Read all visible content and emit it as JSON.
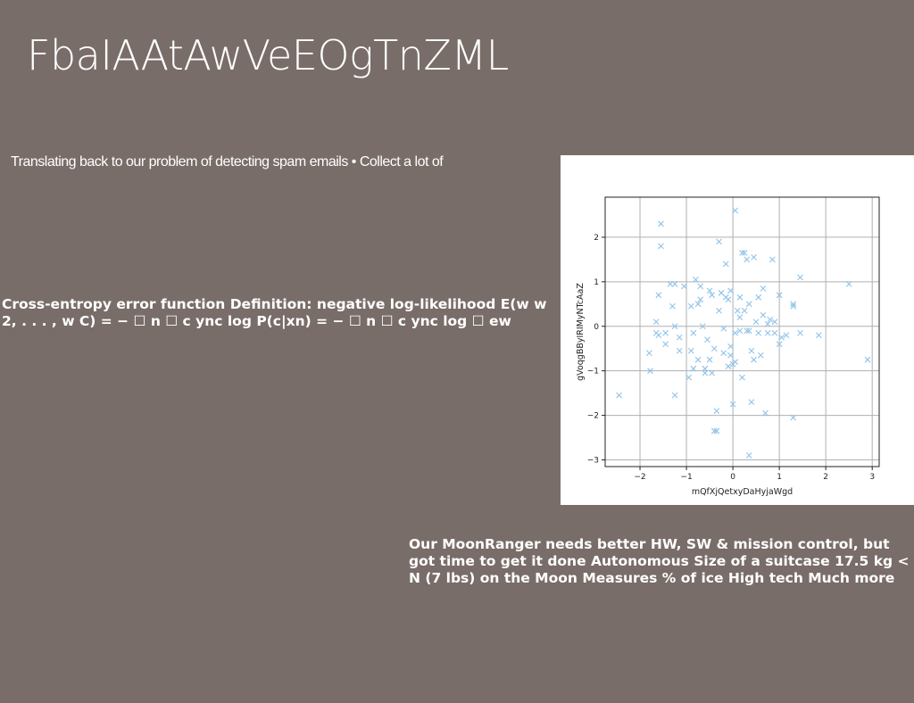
{
  "slide": {
    "title": "FbaIAAtAwVeEOgTnZML",
    "intro": "Translating back to our problem of detecting spam emails • Collect a lot of",
    "block_left": "Cross-entropy error function Definition: negative log-likelihood E(w w 2, . . . , w C) = − ☐ n ☐ c ync log P(c|xn) = − ☐ n ☐ c ync log ☐ ew",
    "block_right": "Our MoonRanger needs better HW, SW & mission control, but got time to get it done Autonomous Size of a suitcase 17.5 kg < N (7 lbs) on the Moon Measures % of ice High tech Much more"
  },
  "chart_data": {
    "type": "scatter",
    "xlabel": "mQfXjQetxyDaHyjaWgd",
    "ylabel": "gVoqgBByIRIMyNTcAaZ",
    "xlim": [
      -2.75,
      3.15
    ],
    "ylim": [
      -3.15,
      2.9
    ],
    "xticks": [
      -2,
      -1,
      0,
      1,
      2,
      3
    ],
    "yticks": [
      2,
      1,
      0,
      -1,
      -2,
      -3
    ],
    "xtick_labels": [
      "−2",
      "−1",
      "0",
      "1",
      "2",
      "3"
    ],
    "ytick_labels": [
      "2",
      "1",
      "0",
      "−1",
      "−2",
      "−3"
    ],
    "grid": true,
    "marker": "x",
    "color": "#8ec3ea",
    "points": [
      [
        -2.45,
        -1.55
      ],
      [
        -1.8,
        -0.6
      ],
      [
        -1.78,
        -1.0
      ],
      [
        -1.65,
        0.1
      ],
      [
        -1.65,
        -0.15
      ],
      [
        -1.6,
        0.7
      ],
      [
        -1.55,
        2.3
      ],
      [
        -1.55,
        1.8
      ],
      [
        -1.45,
        -0.15
      ],
      [
        -1.45,
        -0.4
      ],
      [
        -1.35,
        0.95
      ],
      [
        -1.3,
        0.45
      ],
      [
        -1.25,
        0.95
      ],
      [
        -1.25,
        -1.55
      ],
      [
        -1.15,
        -0.25
      ],
      [
        -1.15,
        -0.55
      ],
      [
        -1.05,
        0.9
      ],
      [
        -0.9,
        -0.55
      ],
      [
        -0.85,
        -0.15
      ],
      [
        -0.85,
        -0.95
      ],
      [
        -0.8,
        1.05
      ],
      [
        -0.75,
        0.5
      ],
      [
        -0.75,
        -0.75
      ],
      [
        -0.7,
        0.6
      ],
      [
        -0.65,
        0.0
      ],
      [
        -0.6,
        -1.05
      ],
      [
        -0.55,
        -0.3
      ],
      [
        -0.5,
        -0.75
      ],
      [
        -0.5,
        0.8
      ],
      [
        -0.45,
        0.7
      ],
      [
        -0.4,
        -0.5
      ],
      [
        -0.35,
        -1.9
      ],
      [
        -0.3,
        1.9
      ],
      [
        -0.3,
        0.35
      ],
      [
        -0.25,
        0.75
      ],
      [
        -0.2,
        -0.6
      ],
      [
        -0.15,
        1.4
      ],
      [
        -0.15,
        0.65
      ],
      [
        -0.1,
        -0.9
      ],
      [
        -0.05,
        -0.45
      ],
      [
        -0.05,
        -0.65
      ],
      [
        0.0,
        -0.85
      ],
      [
        0.0,
        -1.75
      ],
      [
        0.05,
        2.6
      ],
      [
        0.05,
        -0.8
      ],
      [
        0.05,
        -0.15
      ],
      [
        0.1,
        0.35
      ],
      [
        0.15,
        0.65
      ],
      [
        0.15,
        0.2
      ],
      [
        0.15,
        -0.1
      ],
      [
        0.2,
        1.65
      ],
      [
        0.2,
        -1.15
      ],
      [
        0.25,
        1.65
      ],
      [
        0.25,
        0.35
      ],
      [
        0.3,
        -0.1
      ],
      [
        0.3,
        1.5
      ],
      [
        0.35,
        -2.9
      ],
      [
        0.35,
        0.5
      ],
      [
        0.4,
        -0.55
      ],
      [
        0.4,
        -1.7
      ],
      [
        0.45,
        1.55
      ],
      [
        0.45,
        -0.75
      ],
      [
        0.5,
        0.1
      ],
      [
        0.55,
        0.65
      ],
      [
        0.55,
        -0.15
      ],
      [
        0.6,
        -0.65
      ],
      [
        0.65,
        0.85
      ],
      [
        0.65,
        0.25
      ],
      [
        0.7,
        -1.95
      ],
      [
        0.75,
        0.05
      ],
      [
        0.8,
        0.15
      ],
      [
        0.85,
        1.5
      ],
      [
        0.9,
        0.1
      ],
      [
        0.9,
        -0.15
      ],
      [
        1.0,
        -0.4
      ],
      [
        1.0,
        0.7
      ],
      [
        1.05,
        -0.25
      ],
      [
        1.15,
        -0.2
      ],
      [
        1.3,
        0.5
      ],
      [
        1.3,
        -2.05
      ],
      [
        1.3,
        0.45
      ],
      [
        1.45,
        1.1
      ],
      [
        1.45,
        -0.15
      ],
      [
        1.85,
        -0.2
      ],
      [
        2.5,
        0.95
      ],
      [
        2.9,
        -0.75
      ],
      [
        -0.45,
        -1.05
      ],
      [
        -0.6,
        -0.95
      ],
      [
        -1.6,
        -0.2
      ],
      [
        -0.4,
        -2.35
      ],
      [
        -0.35,
        -2.35
      ],
      [
        -0.9,
        0.45
      ],
      [
        0.35,
        -0.1
      ],
      [
        -0.05,
        0.8
      ],
      [
        -0.2,
        -0.05
      ],
      [
        -0.1,
        0.6
      ],
      [
        -1.25,
        0.0
      ],
      [
        0.75,
        -0.15
      ],
      [
        -0.7,
        0.9
      ],
      [
        -0.95,
        -1.15
      ]
    ]
  }
}
